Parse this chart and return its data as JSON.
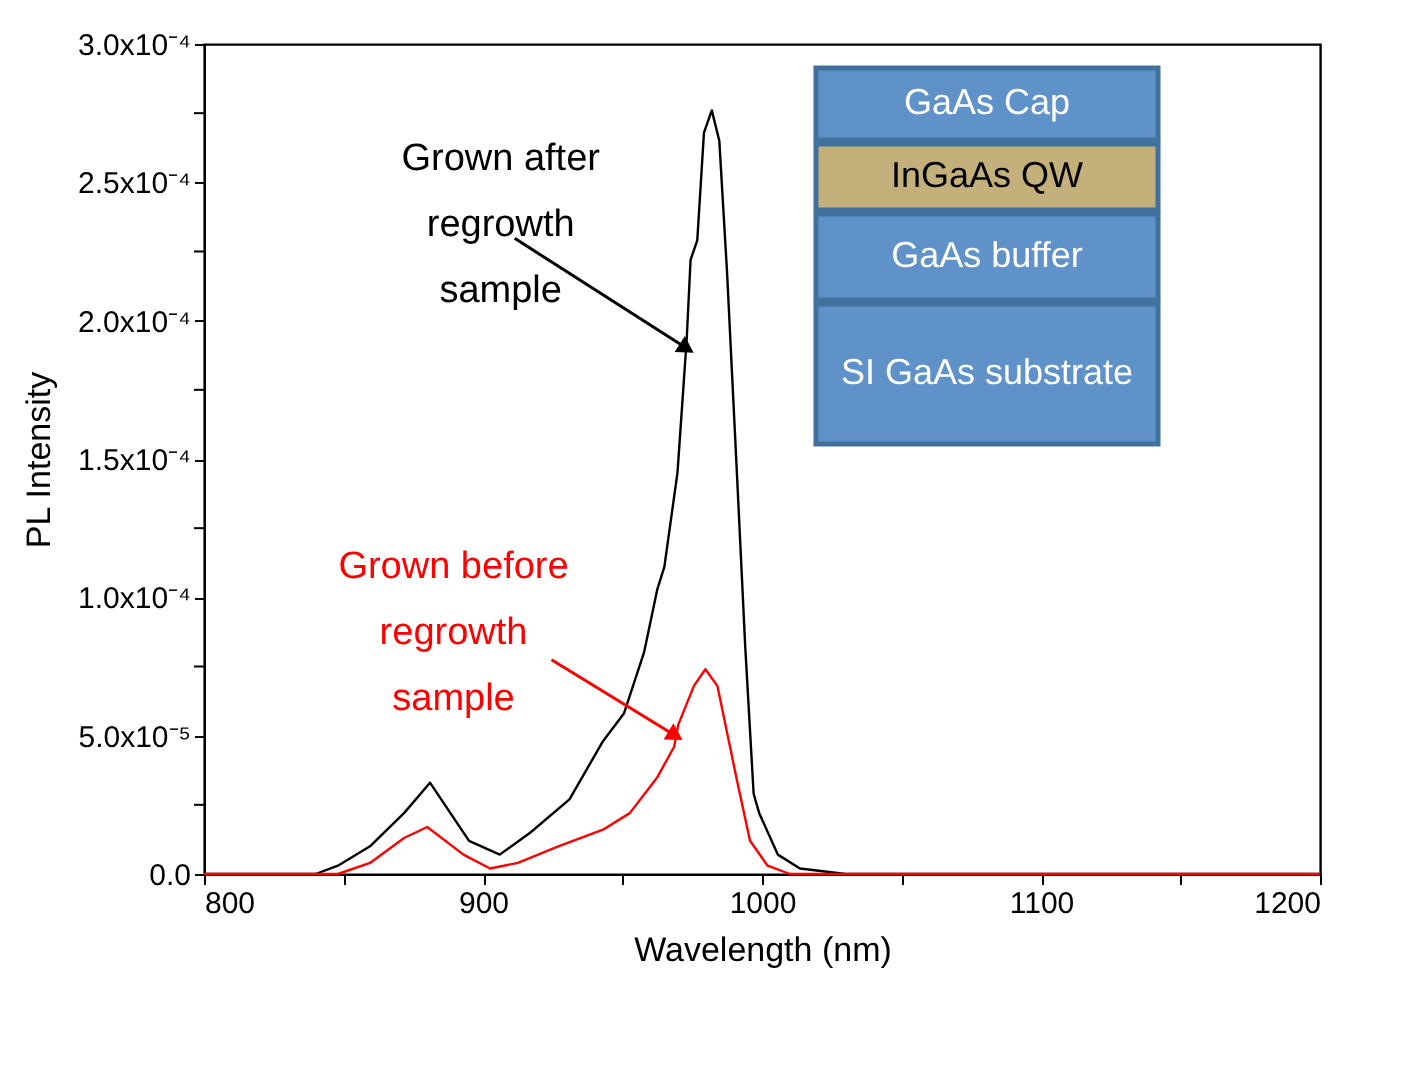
{
  "chart_data": {
    "type": "line",
    "xlabel": "Wavelength (nm)",
    "ylabel": "PL Intensity",
    "xlim": [
      800,
      1200
    ],
    "ylim": [
      0,
      0.0003
    ],
    "xticks": [
      800,
      {
        "value": 850,
        "label": null
      },
      900,
      {
        "value": 950,
        "label": null
      },
      1000,
      {
        "value": 1050,
        "label": null
      },
      1100,
      {
        "value": 1150,
        "label": null
      },
      1200
    ],
    "yticks": [
      {
        "value": 0,
        "label": "0.0"
      },
      {
        "value": 2.5e-05,
        "label": null
      },
      {
        "value": 5e-05,
        "label": "5.0x10⁻⁵"
      },
      {
        "value": 7.5e-05,
        "label": null
      },
      {
        "value": 0.0001,
        "label": "1.0x10⁻⁴"
      },
      {
        "value": 0.000125,
        "label": null
      },
      {
        "value": 0.00015,
        "label": "1.5x10⁻⁴"
      },
      {
        "value": 0.000175,
        "label": null
      },
      {
        "value": 0.0002,
        "label": "2.0x10⁻⁴"
      },
      {
        "value": 0.000225,
        "label": null
      },
      {
        "value": 0.00025,
        "label": "2.5x10⁻⁴"
      },
      {
        "value": 0.000275,
        "label": null
      },
      {
        "value": 0.0003,
        "label": "3.0x10⁻⁴"
      }
    ],
    "grid": false,
    "marker": "none",
    "line_style": "solid",
    "series": [
      {
        "color": "#000000",
        "x": [
          800,
          820,
          840,
          848,
          859.5,
          871.7,
          881,
          895,
          906,
          917,
          931,
          943,
          950.5,
          957.7,
          962.5,
          965,
          969.7,
          973,
          974.4,
          976.8,
          979.2,
          982,
          984.7,
          987.5,
          991,
          994,
          997,
          999,
          1005.7,
          1013.6,
          1030,
          1100,
          1200
        ],
        "values": [
          0,
          0,
          0,
          3e-06,
          1e-05,
          2.2e-05,
          3.3e-05,
          1.2e-05,
          7e-06,
          1.5e-05,
          2.7e-05,
          4.8e-05,
          5.8e-05,
          8e-05,
          0.000103,
          0.000111,
          0.000145,
          0.000193,
          0.000222,
          0.000229,
          0.000268,
          0.000276,
          0.000265,
          0.000217,
          0.000145,
          8.2e-05,
          2.9e-05,
          2.2e-05,
          7e-06,
          2e-06,
          0,
          0,
          0
        ]
      },
      {
        "color": "#ff0000",
        "x": [
          800,
          820,
          840,
          848,
          859.5,
          871.7,
          880,
          893,
          902.5,
          912.5,
          927,
          943,
          952.6,
          962.5,
          968.5,
          970,
          975.6,
          979.7,
          984,
          991,
          995.7,
          1002,
          1010,
          1030,
          1100,
          1200
        ],
        "values": [
          0,
          0,
          0,
          0,
          4e-06,
          1.3e-05,
          1.7e-05,
          7e-06,
          2e-06,
          4e-06,
          1e-05,
          1.6e-05,
          2.2e-05,
          3.5e-05,
          4.6e-05,
          5.4e-05,
          6.8e-05,
          7.4e-05,
          6.8e-05,
          3.4e-05,
          1.2e-05,
          3e-06,
          0,
          0,
          0,
          0
        ]
      }
    ],
    "annotations": [
      {
        "text": "Grown after\nregrowth\nsample",
        "x": 973,
        "y": 0.00019
      },
      {
        "text": "Grown before\nregrowth\nsample",
        "x": 969,
        "y": 5e-05
      },
      "GaAs Cap",
      "InGaAs QW",
      "GaAs buffer",
      "SI GaAs substrate"
    ]
  }
}
